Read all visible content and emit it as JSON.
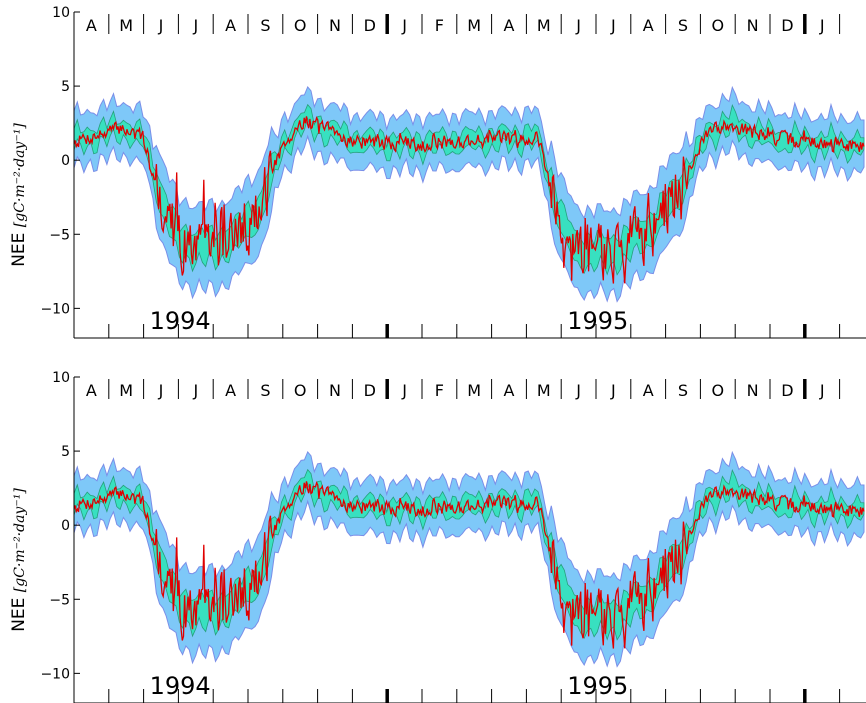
{
  "chart_data": [
    {
      "type": "area",
      "ylabel": "NEE",
      "ylabel_units": "[gC·m⁻²·day⁻¹]",
      "ylim": [
        -12,
        10
      ],
      "yticks": [
        -10,
        -5,
        0,
        5,
        10
      ],
      "month_labels": [
        "A",
        "M",
        "J",
        "J",
        "A",
        "S",
        "O",
        "N",
        "D",
        "J",
        "F",
        "M",
        "A",
        "M",
        "J",
        "J",
        "A",
        "S",
        "O",
        "N",
        "D",
        "J"
      ],
      "year_labels": [
        {
          "text": "1994",
          "month_index": 3
        },
        {
          "text": "1995",
          "month_index": 15
        }
      ],
      "year_boundaries_month_index": [
        9,
        21
      ],
      "x_range_months": [
        0,
        22.7
      ],
      "anchors": [
        {
          "m": 0.0,
          "y": 1.3
        },
        {
          "m": 0.7,
          "y": 1.7
        },
        {
          "m": 1.4,
          "y": 2.2
        },
        {
          "m": 2.0,
          "y": 1.4
        },
        {
          "m": 2.5,
          "y": -2.5
        },
        {
          "m": 3.0,
          "y": -5.5
        },
        {
          "m": 4.0,
          "y": -6.0
        },
        {
          "m": 4.7,
          "y": -5.0
        },
        {
          "m": 5.3,
          "y": -3.5
        },
        {
          "m": 6.0,
          "y": 1.0
        },
        {
          "m": 6.6,
          "y": 2.7
        },
        {
          "m": 7.3,
          "y": 2.0
        },
        {
          "m": 8.0,
          "y": 1.3
        },
        {
          "m": 9.0,
          "y": 1.1
        },
        {
          "m": 10.0,
          "y": 1.1
        },
        {
          "m": 12.0,
          "y": 1.4
        },
        {
          "m": 13.3,
          "y": 1.6
        },
        {
          "m": 14.0,
          "y": -4.0
        },
        {
          "m": 14.4,
          "y": -6.0
        },
        {
          "m": 15.4,
          "y": -6.3
        },
        {
          "m": 16.5,
          "y": -4.8
        },
        {
          "m": 17.4,
          "y": -2.0
        },
        {
          "m": 18.2,
          "y": 1.8
        },
        {
          "m": 18.8,
          "y": 2.5
        },
        {
          "m": 19.8,
          "y": 1.6
        },
        {
          "m": 21.0,
          "y": 1.2
        },
        {
          "m": 22.7,
          "y": 1.0
        }
      ],
      "bands": {
        "outer_halfwidth": {
          "baseline": 1.8,
          "growing_season": 2.8
        },
        "inner_halfwidth": {
          "baseline": 0.6,
          "growing_season": 1.0
        }
      },
      "series": [
        {
          "role": "outer-band",
          "fill": "#7ec8f8",
          "stroke": "#7a8ee8"
        },
        {
          "role": "inner-band",
          "fill": "#38e0c0",
          "stroke": "#25a07a"
        },
        {
          "role": "observed",
          "stroke": "#e00000"
        }
      ]
    },
    {
      "type": "area",
      "ylabel": "NEE",
      "ylabel_units": "[gC·m⁻²·day⁻¹]",
      "ylim": [
        -12,
        10
      ],
      "yticks": [
        -10,
        -5,
        0,
        5,
        10
      ],
      "month_labels": [
        "A",
        "M",
        "J",
        "J",
        "A",
        "S",
        "O",
        "N",
        "D",
        "J",
        "F",
        "M",
        "A",
        "M",
        "J",
        "J",
        "A",
        "S",
        "O",
        "N",
        "D",
        "J"
      ],
      "year_labels": [
        {
          "text": "1994",
          "month_index": 3
        },
        {
          "text": "1995",
          "month_index": 15
        }
      ],
      "year_boundaries_month_index": [
        9,
        21
      ],
      "x_range_months": [
        0,
        22.7
      ],
      "anchors": [
        {
          "m": 0.0,
          "y": 1.3
        },
        {
          "m": 0.7,
          "y": 1.7
        },
        {
          "m": 1.4,
          "y": 2.2
        },
        {
          "m": 2.0,
          "y": 1.4
        },
        {
          "m": 2.5,
          "y": -2.5
        },
        {
          "m": 3.0,
          "y": -5.5
        },
        {
          "m": 4.0,
          "y": -6.0
        },
        {
          "m": 4.7,
          "y": -5.0
        },
        {
          "m": 5.3,
          "y": -3.5
        },
        {
          "m": 6.0,
          "y": 1.0
        },
        {
          "m": 6.6,
          "y": 2.7
        },
        {
          "m": 7.3,
          "y": 2.0
        },
        {
          "m": 8.0,
          "y": 1.3
        },
        {
          "m": 9.0,
          "y": 1.1
        },
        {
          "m": 10.0,
          "y": 1.1
        },
        {
          "m": 12.0,
          "y": 1.4
        },
        {
          "m": 13.3,
          "y": 1.6
        },
        {
          "m": 14.0,
          "y": -4.0
        },
        {
          "m": 14.4,
          "y": -6.0
        },
        {
          "m": 15.4,
          "y": -6.3
        },
        {
          "m": 16.5,
          "y": -4.8
        },
        {
          "m": 17.4,
          "y": -2.0
        },
        {
          "m": 18.2,
          "y": 1.8
        },
        {
          "m": 18.8,
          "y": 2.5
        },
        {
          "m": 19.8,
          "y": 1.6
        },
        {
          "m": 21.0,
          "y": 1.2
        },
        {
          "m": 22.7,
          "y": 1.0
        }
      ],
      "bands": {
        "outer_halfwidth": {
          "baseline": 1.8,
          "growing_season": 2.8
        },
        "inner_halfwidth": {
          "baseline": 0.6,
          "growing_season": 1.0
        }
      },
      "series": [
        {
          "role": "outer-band",
          "fill": "#7ec8f8",
          "stroke": "#7a8ee8"
        },
        {
          "role": "inner-band",
          "fill": "#38e0c0",
          "stroke": "#25a07a"
        },
        {
          "role": "observed",
          "stroke": "#e00000"
        }
      ]
    }
  ]
}
